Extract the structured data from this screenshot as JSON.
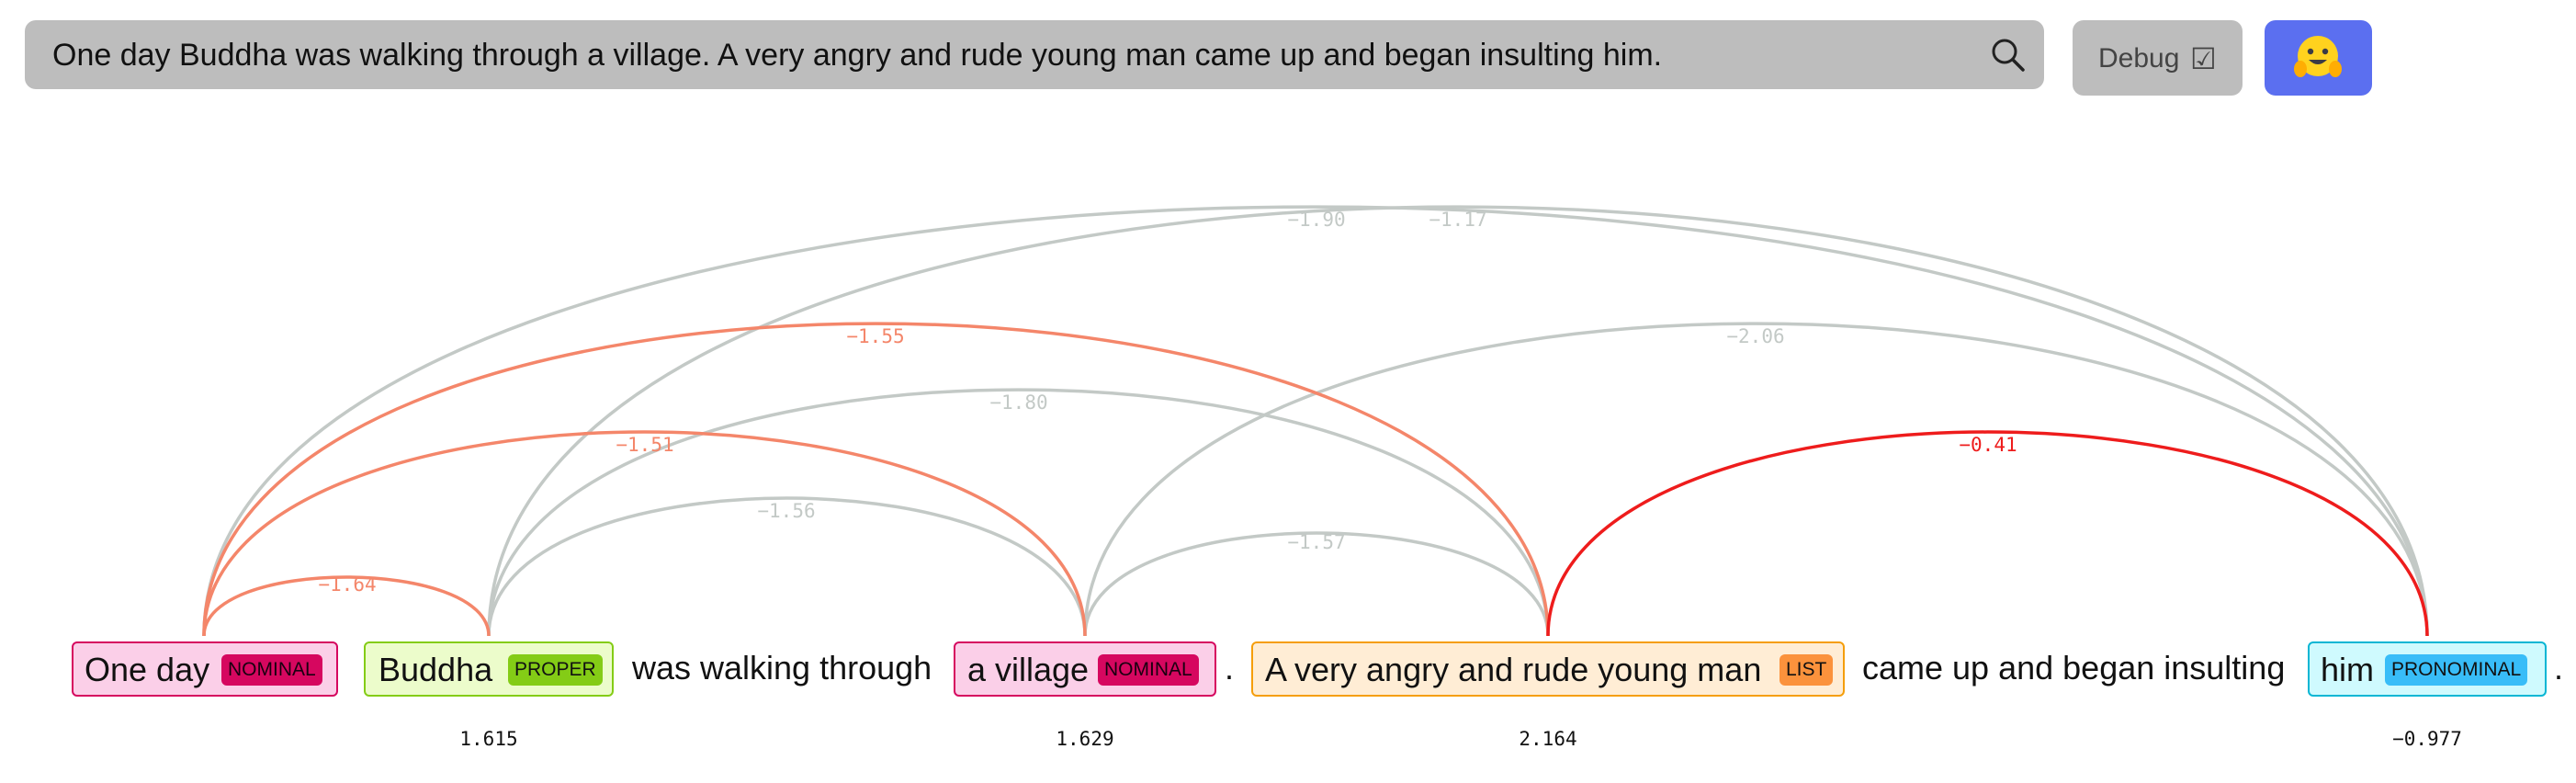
{
  "search": {
    "query": "One day Buddha was walking through a village. A very angry and rude young man came up and began insulting him.",
    "icon": "search-icon"
  },
  "debug": {
    "label": "Debug",
    "checkbox": "☑",
    "checked": true
  },
  "hf_button": {
    "icon": "hugging-face-icon",
    "color": "#5b6ff0"
  },
  "colors": {
    "nominal_bg": "#fbcfe8",
    "nominal_border": "#d6075f",
    "nominal_badge": "#d6075f",
    "proper_bg": "#ecfccb",
    "proper_border": "#84cc16",
    "proper_badge": "#84cc16",
    "list_bg": "#ffedd5",
    "list_border": "#f59e0b",
    "list_badge": "#fb923c",
    "pronominal_bg": "#cffafe",
    "pronominal_border": "#06b6d4",
    "pronominal_badge": "#38bdf8",
    "arc_gray": "#c3c9c6",
    "arc_salmon": "#f4866a",
    "arc_red": "#ee1c1c"
  },
  "tokens": [
    {
      "type": "mention",
      "text": "One day",
      "badge": "NOMINAL",
      "style": "nominal"
    },
    {
      "type": "mention",
      "text": "Buddha",
      "badge": "PROPER",
      "style": "proper",
      "score": "1.615"
    },
    {
      "type": "plain",
      "text": "was walking through"
    },
    {
      "type": "mention",
      "text": "a village",
      "badge": "NOMINAL",
      "style": "nominal",
      "score": "1.629"
    },
    {
      "type": "plain",
      "text": "."
    },
    {
      "type": "mention",
      "text": "A very angry and rude young man",
      "badge": "LIST",
      "style": "list",
      "score": "2.164"
    },
    {
      "type": "plain",
      "text": "came up and began insulting"
    },
    {
      "type": "mention",
      "text": "him",
      "badge": "PRONOMINAL",
      "style": "pronominal",
      "score": "−0.977"
    },
    {
      "type": "plain",
      "text": "."
    }
  ],
  "arcs": [
    {
      "from": 0,
      "to": 1,
      "label": "−1.64",
      "color": "salmon"
    },
    {
      "from": 1,
      "to": 3,
      "label": "−1.56",
      "color": "gray"
    },
    {
      "from": 0,
      "to": 3,
      "label": "−1.51",
      "color": "salmon"
    },
    {
      "from": 1,
      "to": 5,
      "label": "−1.80",
      "color": "gray"
    },
    {
      "from": 0,
      "to": 5,
      "label": "−1.55",
      "color": "salmon"
    },
    {
      "from": 3,
      "to": 5,
      "label": "−1.57",
      "color": "gray"
    },
    {
      "from": 5,
      "to": 7,
      "label": "−0.41",
      "color": "red"
    },
    {
      "from": 3,
      "to": 7,
      "label": "−2.06",
      "color": "gray"
    },
    {
      "from": 1,
      "to": 7,
      "label": "−1.17",
      "color": "gray"
    },
    {
      "from": 0,
      "to": 7,
      "label": "−1.90",
      "color": "gray"
    }
  ]
}
